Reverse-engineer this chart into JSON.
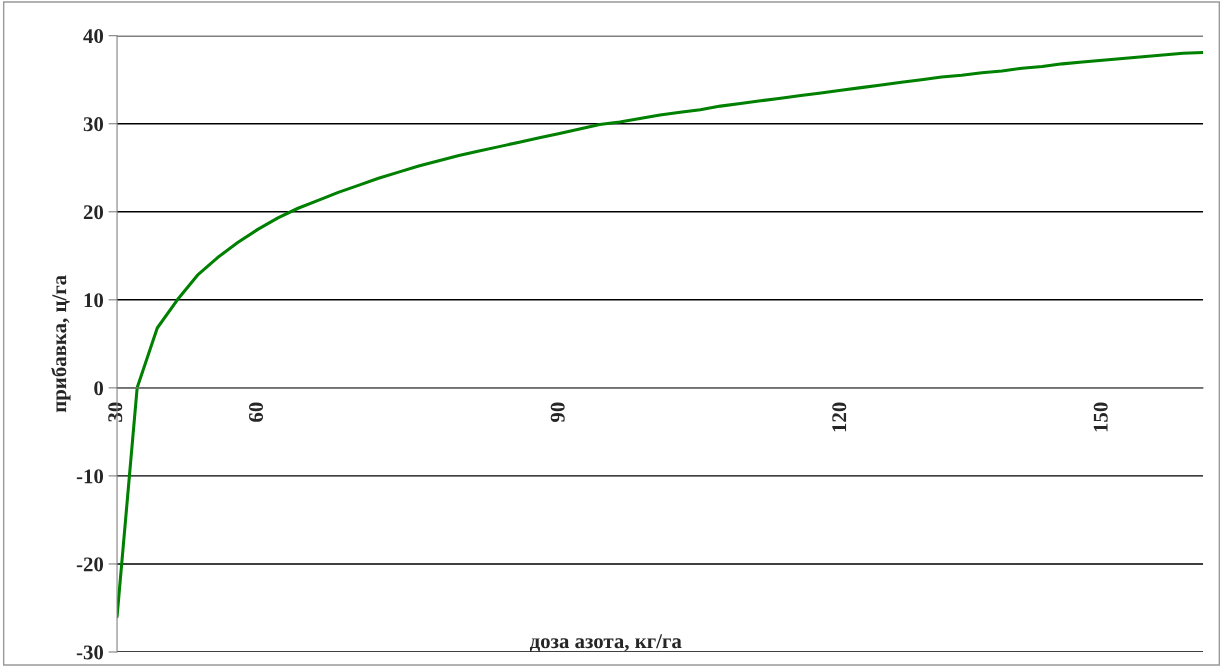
{
  "chart_data": {
    "type": "line",
    "xlabel": "доза азота, кг/га",
    "ylabel": "прибавка, ц/га",
    "categories": [
      "30",
      null,
      null,
      null,
      null,
      null,
      null,
      "60",
      null,
      null,
      null,
      null,
      null,
      null,
      null,
      null,
      null,
      null,
      null,
      null,
      null,
      null,
      "90",
      null,
      null,
      null,
      null,
      null,
      null,
      null,
      null,
      null,
      null,
      null,
      null,
      null,
      "120",
      null,
      null,
      null,
      null,
      null,
      null,
      null,
      null,
      null,
      null,
      null,
      null,
      "150",
      null,
      null,
      null,
      null,
      null
    ],
    "series": [
      {
        "color": "#008000",
        "values": [
          -26,
          0,
          6.8,
          10,
          12.8,
          14.8,
          16.5,
          18,
          19.3,
          20.4,
          21.3,
          22.2,
          23,
          23.8,
          24.5,
          25.2,
          25.8,
          26.4,
          26.9,
          27.4,
          27.9,
          28.4,
          28.9,
          29.4,
          29.9,
          30.2,
          30.6,
          31,
          31.3,
          31.6,
          32,
          32.3,
          32.6,
          32.9,
          33.2,
          33.5,
          33.8,
          34.1,
          34.4,
          34.7,
          35,
          35.3,
          35.5,
          35.8,
          36,
          36.3,
          36.5,
          36.8,
          37,
          37.2,
          37.4,
          37.6,
          37.8,
          38,
          38.1
        ]
      }
    ],
    "ylim": [
      -30,
      40
    ],
    "yticks": [
      -30,
      -20,
      -10,
      0,
      10,
      20,
      30,
      40
    ],
    "grid": "y",
    "legend": false,
    "marker": "none",
    "line_style": "solid"
  }
}
